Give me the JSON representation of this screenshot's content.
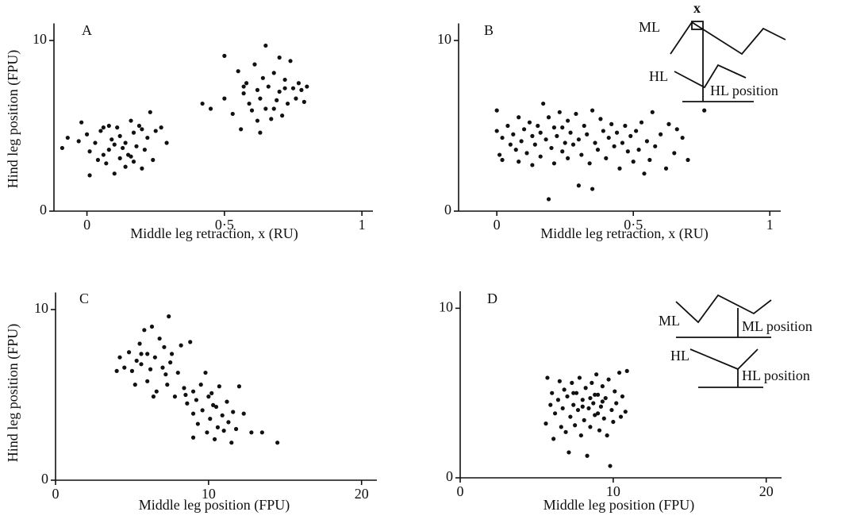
{
  "chart_data": [
    {
      "type": "scatter",
      "label": "A",
      "xlabel": "Middle leg retraction, x (RU)",
      "ylabel": "Hind leg position (FPU)",
      "xlim": [
        -0.12,
        1.04
      ],
      "ylim": [
        0,
        11
      ],
      "xticks": [
        0,
        {
          "value": 0.5,
          "label": "0·5"
        },
        1
      ],
      "yticks": [
        0,
        10
      ],
      "color": "#111111",
      "x": [
        -0.09,
        -0.07,
        -0.03,
        -0.02,
        0,
        0.01,
        0.01,
        0.03,
        0.04,
        0.05,
        0.06,
        0.07,
        0.08,
        0.08,
        0.09,
        0.1,
        0.1,
        0.11,
        0.12,
        0.12,
        0.13,
        0.14,
        0.14,
        0.15,
        0.16,
        0.17,
        0.17,
        0.18,
        0.19,
        0.2,
        0.21,
        0.22,
        0.23,
        0.24,
        0.25,
        0.27,
        0.29,
        0.2,
        0.16,
        0.06,
        0.42,
        0.45,
        0.5,
        0.5,
        0.53,
        0.55,
        0.56,
        0.57,
        0.58,
        0.59,
        0.6,
        0.61,
        0.62,
        0.63,
        0.63,
        0.64,
        0.65,
        0.65,
        0.66,
        0.67,
        0.68,
        0.69,
        0.7,
        0.7,
        0.71,
        0.72,
        0.73,
        0.74,
        0.75,
        0.76,
        0.77,
        0.79,
        0.8,
        0.68,
        0.62,
        0.72,
        0.78,
        0.57
      ],
      "values": [
        3.7,
        4.3,
        4.1,
        5.2,
        4.5,
        3.5,
        2.1,
        4.0,
        3.0,
        4.7,
        3.3,
        2.8,
        3.6,
        5.0,
        4.2,
        2.2,
        3.9,
        4.9,
        3.1,
        4.4,
        3.7,
        2.6,
        4.0,
        3.3,
        5.3,
        4.6,
        2.9,
        3.8,
        5.0,
        2.5,
        3.6,
        4.3,
        5.8,
        3.0,
        4.7,
        4.9,
        4.0,
        4.8,
        3.2,
        4.9,
        6.3,
        6.0,
        6.6,
        9.1,
        5.7,
        8.2,
        4.8,
        6.9,
        7.5,
        6.3,
        5.9,
        8.6,
        7.1,
        6.6,
        4.6,
        7.8,
        6.0,
        9.7,
        7.3,
        5.4,
        8.1,
        6.5,
        7.0,
        9.0,
        5.6,
        7.7,
        6.3,
        8.8,
        7.2,
        6.6,
        7.5,
        6.4,
        7.3,
        6.0,
        5.3,
        7.2,
        7.1,
        7.3
      ]
    },
    {
      "type": "scatter",
      "label": "B",
      "xlabel": "Middle leg retraction, x (RU)",
      "annotations": [
        "ML",
        "x",
        "HL",
        "HL position"
      ],
      "xlim": [
        -0.14,
        1.04
      ],
      "ylim": [
        0,
        11
      ],
      "xticks": [
        0,
        {
          "value": 0.5,
          "label": "0·5"
        },
        1
      ],
      "yticks": [
        0,
        10
      ],
      "color": "#111111",
      "x": [
        0,
        0,
        0.01,
        0.02,
        0.02,
        0.04,
        0.05,
        0.06,
        0.07,
        0.08,
        0.08,
        0.09,
        0.1,
        0.11,
        0.12,
        0.13,
        0.13,
        0.14,
        0.15,
        0.16,
        0.16,
        0.17,
        0.18,
        0.19,
        0.19,
        0.2,
        0.21,
        0.21,
        0.22,
        0.23,
        0.24,
        0.24,
        0.25,
        0.26,
        0.26,
        0.27,
        0.28,
        0.29,
        0.3,
        0.3,
        0.31,
        0.32,
        0.33,
        0.34,
        0.35,
        0.35,
        0.36,
        0.37,
        0.38,
        0.39,
        0.4,
        0.41,
        0.42,
        0.43,
        0.44,
        0.45,
        0.46,
        0.47,
        0.48,
        0.49,
        0.5,
        0.51,
        0.52,
        0.53,
        0.54,
        0.55,
        0.56,
        0.57,
        0.58,
        0.6,
        0.62,
        0.63,
        0.65,
        0.66,
        0.68,
        0.7,
        0.76
      ],
      "values": [
        5.9,
        4.7,
        3.3,
        4.3,
        3.0,
        5.0,
        3.9,
        4.5,
        3.6,
        5.5,
        2.9,
        4.1,
        4.8,
        3.4,
        5.2,
        4.4,
        2.7,
        3.9,
        5.0,
        4.6,
        3.2,
        6.3,
        4.2,
        5.5,
        0.7,
        3.7,
        4.9,
        2.8,
        4.4,
        5.8,
        3.5,
        4.9,
        4.0,
        5.3,
        3.1,
        4.6,
        3.9,
        5.7,
        1.5,
        4.2,
        3.3,
        5.0,
        4.5,
        2.8,
        5.9,
        1.3,
        4.0,
        3.6,
        5.4,
        4.7,
        3.1,
        4.3,
        5.1,
        3.8,
        4.6,
        2.5,
        4.0,
        5.0,
        3.5,
        4.4,
        2.9,
        4.7,
        3.6,
        5.2,
        2.2,
        4.1,
        3.0,
        5.8,
        3.8,
        4.5,
        2.5,
        5.1,
        3.4,
        4.8,
        4.3,
        3.0,
        5.9
      ]
    },
    {
      "type": "scatter",
      "label": "C",
      "xlabel": "Middle leg position (FPU)",
      "ylabel": "Hind leg position (FPU)",
      "xlim": [
        0,
        21
      ],
      "ylim": [
        0,
        11
      ],
      "xticks": [
        0,
        10,
        20
      ],
      "yticks": [
        0,
        10
      ],
      "color": "#111111",
      "x": [
        4,
        4.2,
        4.5,
        4.8,
        5,
        5.2,
        5.3,
        5.5,
        5.6,
        5.8,
        6,
        6,
        6.2,
        6.3,
        6.5,
        6.6,
        6.8,
        7,
        7.1,
        7.3,
        7.4,
        7.5,
        7.6,
        7.8,
        8,
        8.2,
        8.4,
        8.6,
        8.8,
        9,
        9,
        9,
        9.2,
        9.3,
        9.5,
        9.6,
        9.8,
        9.9,
        10,
        10.1,
        10.2,
        10.4,
        10.5,
        10.6,
        10.7,
        10.9,
        11,
        11.2,
        11.3,
        11.5,
        11.6,
        11.8,
        12,
        12.3,
        12.8,
        13.5,
        14.5,
        8.5,
        7.2,
        6.4,
        5.6,
        10.3
      ],
      "values": [
        6.4,
        7.2,
        6.6,
        7.5,
        6.4,
        5.6,
        7.0,
        8.0,
        6.8,
        8.8,
        7.4,
        5.8,
        6.5,
        9.0,
        7.2,
        5.2,
        8.3,
        6.6,
        7.8,
        5.6,
        9.6,
        6.9,
        7.4,
        4.9,
        6.3,
        7.9,
        5.4,
        4.5,
        8.1,
        3.9,
        5.2,
        2.5,
        4.7,
        3.3,
        5.6,
        4.1,
        6.3,
        2.8,
        4.9,
        3.6,
        5.1,
        2.4,
        4.3,
        3.1,
        5.5,
        3.8,
        2.9,
        4.6,
        3.4,
        2.2,
        4.0,
        3.0,
        5.5,
        3.9,
        2.8,
        2.8,
        2.2,
        5.0,
        6.2,
        4.9,
        7.4,
        4.4
      ]
    },
    {
      "type": "scatter",
      "label": "D",
      "xlabel": "Middle leg position (FPU)",
      "annotations": [
        "ML",
        "ML position",
        "HL",
        "HL position"
      ],
      "xlim": [
        0,
        21
      ],
      "ylim": [
        0,
        11
      ],
      "xticks": [
        0,
        10,
        20
      ],
      "yticks": [
        0,
        10
      ],
      "color": "#111111",
      "x": [
        5.6,
        5.7,
        5.9,
        6,
        6.1,
        6.2,
        6.4,
        6.5,
        6.6,
        6.7,
        6.8,
        6.9,
        7,
        7.1,
        7.2,
        7.3,
        7.4,
        7.5,
        7.6,
        7.7,
        7.8,
        7.9,
        8,
        8.1,
        8.2,
        8.3,
        8.4,
        8.5,
        8.6,
        8.7,
        8.8,
        8.9,
        9,
        9.1,
        9.2,
        9.3,
        9.4,
        9.5,
        9.6,
        9.7,
        9.8,
        9.9,
        10,
        10.1,
        10.2,
        10.4,
        10.5,
        10.6,
        10.8,
        10.9,
        8,
        8.8,
        9.3,
        7.4,
        8.5,
        9
      ],
      "values": [
        3.2,
        5.9,
        4.3,
        5.0,
        2.3,
        3.8,
        4.6,
        5.7,
        3.0,
        4.1,
        5.2,
        2.7,
        4.8,
        1.5,
        3.6,
        5.6,
        4.3,
        3.1,
        5.0,
        4.0,
        5.9,
        2.5,
        4.6,
        3.4,
        5.3,
        1.3,
        4.1,
        3.0,
        5.6,
        4.4,
        3.7,
        6.1,
        4.9,
        2.8,
        4.2,
        5.4,
        3.5,
        4.7,
        2.5,
        5.8,
        0.7,
        4.0,
        3.3,
        5.1,
        4.4,
        6.2,
        3.6,
        4.8,
        3.9,
        6.3,
        4.2,
        4.9,
        4.5,
        5.0,
        4.7,
        3.8
      ]
    }
  ]
}
